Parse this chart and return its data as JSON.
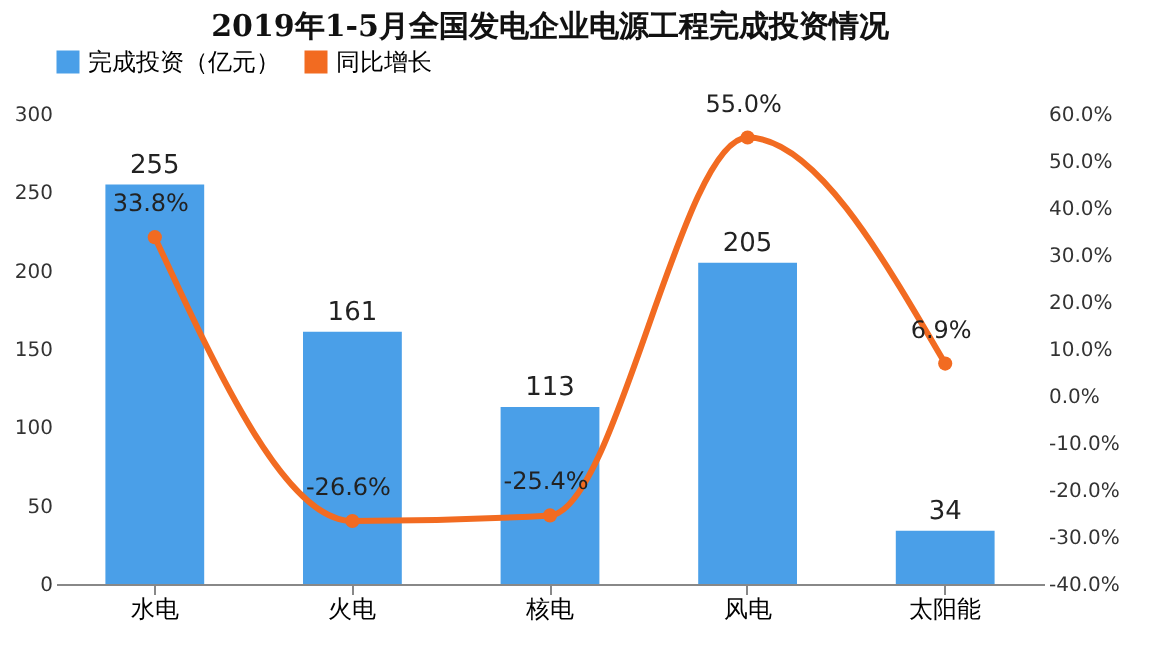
{
  "chart_data": {
    "type": "bar",
    "title": "2019年1-5月全国发电企业电源工程完成投资情况",
    "categories": [
      "水电",
      "火电",
      "核电",
      "风电",
      "太阳能"
    ],
    "series": [
      {
        "name": "完成投资（亿元）",
        "color": "#4a9fe8",
        "values": [
          255,
          161,
          113,
          205,
          34
        ],
        "value_labels": [
          "255",
          "161",
          "113",
          "205",
          "34"
        ]
      },
      {
        "name": "同比增长",
        "type": "line",
        "axis": "y2",
        "color": "#f26b21",
        "values": [
          33.8,
          -26.6,
          -25.4,
          55.0,
          6.9
        ],
        "value_labels": [
          "33.8%",
          "-26.6%",
          "-25.4%",
          "55.0%",
          "6.9%"
        ]
      }
    ],
    "ylim": [
      0,
      300
    ],
    "yticks": [
      0,
      50,
      100,
      150,
      200,
      250,
      300
    ],
    "y2lim": [
      -40,
      60
    ],
    "y2ticks": [
      {
        "value": -40,
        "label": "-40.0%"
      },
      {
        "value": -30,
        "label": "-30.0%"
      },
      {
        "value": -20,
        "label": "-20.0%"
      },
      {
        "value": -10,
        "label": "-10.0%"
      },
      {
        "value": 0,
        "label": "0.0%"
      },
      {
        "value": 10,
        "label": "10.0%"
      },
      {
        "value": 20,
        "label": "20.0%"
      },
      {
        "value": 30,
        "label": "30.0%"
      },
      {
        "value": 40,
        "label": "40.0%"
      },
      {
        "value": 50,
        "label": "50.0%"
      },
      {
        "value": 60,
        "label": "60.0%"
      }
    ],
    "legend": "top",
    "marker": "circle",
    "line_style": "solid",
    "grid": false
  }
}
